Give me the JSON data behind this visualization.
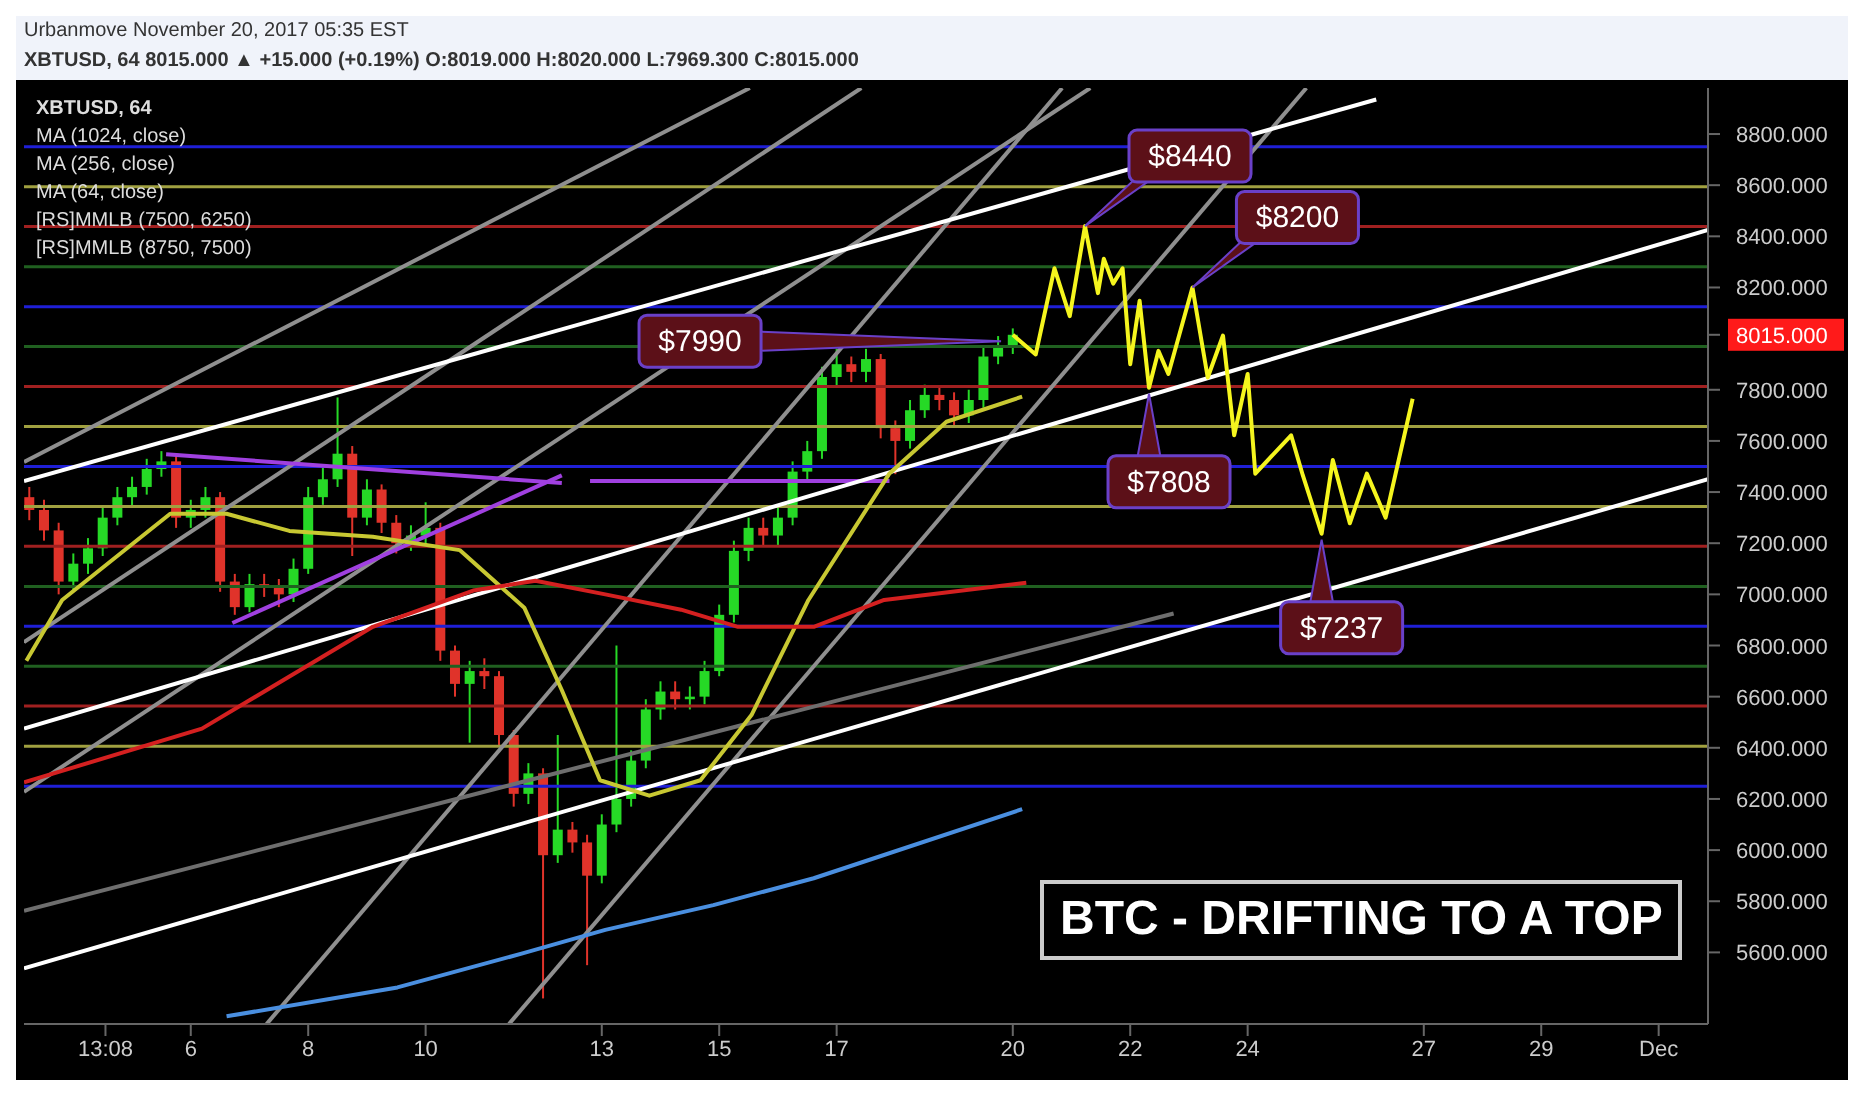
{
  "chart_data": {
    "type": "candlestick",
    "title": "BTC - DRIFTING TO A TOP",
    "annotations": [
      "Urbanmove November 20, 2017 05:35 EST",
      "XBTUSD, 64 8015.000 ▲ +15.000 (+0.19%) O:8019.000 H:8020.000 L:7969.300 C:8015.000",
      "XBTUSD, 64",
      "MA (1024, close)",
      "MA (256, close)",
      "MA (64, close)",
      "[RS]MMLB (7500, 6250)",
      "[RS]MMLB (8750, 7500)",
      {
        "text": "$8440",
        "x": "2017-11-21T05:31",
        "y": 8440
      },
      {
        "text": "$8200",
        "x": "2017-11-23T01:26",
        "y": 8200
      },
      {
        "text": "$7990",
        "x": "2017-11-19T19:12",
        "y": 7990
      },
      {
        "text": "$7808",
        "x": "2017-11-22T07:41",
        "y": 7808
      },
      {
        "text": "$7237",
        "x": "2017-11-25T06:14",
        "y": 7237
      }
    ],
    "x": [
      "2017-11-03T06:00",
      "2017-11-03T12:00",
      "2017-11-03T18:00",
      "2017-11-04",
      "2017-11-04T06:00",
      "2017-11-04T12:00",
      "2017-11-04T18:00",
      "2017-11-05",
      "2017-11-05T06:00",
      "2017-11-05T12:00",
      "2017-11-05T18:00",
      "2017-11-06",
      "2017-11-06T06:00",
      "2017-11-06T12:00",
      "2017-11-06T18:00",
      "2017-11-07",
      "2017-11-07T06:00",
      "2017-11-07T12:00",
      "2017-11-07T18:00",
      "2017-11-08",
      "2017-11-08T06:00",
      "2017-11-08T12:00",
      "2017-11-08T18:00",
      "2017-11-09",
      "2017-11-09T06:00",
      "2017-11-09T12:00",
      "2017-11-09T18:00",
      "2017-11-10",
      "2017-11-10T06:00",
      "2017-11-10T12:00",
      "2017-11-10T18:00",
      "2017-11-11",
      "2017-11-11T06:00",
      "2017-11-11T12:00",
      "2017-11-11T18:00",
      "2017-11-12",
      "2017-11-12T06:00",
      "2017-11-12T12:00",
      "2017-11-12T18:00",
      "2017-11-13",
      "2017-11-13T06:00",
      "2017-11-13T12:00",
      "2017-11-13T18:00",
      "2017-11-14",
      "2017-11-14T06:00",
      "2017-11-14T12:00",
      "2017-11-14T18:00",
      "2017-11-15",
      "2017-11-15T06:00",
      "2017-11-15T12:00",
      "2017-11-15T18:00",
      "2017-11-16",
      "2017-11-16T06:00",
      "2017-11-16T12:00",
      "2017-11-16T18:00",
      "2017-11-17",
      "2017-11-17T06:00",
      "2017-11-17T12:00",
      "2017-11-17T18:00",
      "2017-11-18",
      "2017-11-18T06:00",
      "2017-11-18T12:00",
      "2017-11-18T18:00",
      "2017-11-19",
      "2017-11-19T06:00",
      "2017-11-19T12:00",
      "2017-11-19T18:00",
      "2017-11-20"
    ],
    "ohlc": [
      [
        7380,
        7420,
        7290,
        7330
      ],
      [
        7330,
        7370,
        7210,
        7250
      ],
      [
        7250,
        7280,
        7000,
        7050
      ],
      [
        7050,
        7160,
        7010,
        7120
      ],
      [
        7120,
        7220,
        7080,
        7180
      ],
      [
        7180,
        7340,
        7150,
        7300
      ],
      [
        7300,
        7420,
        7270,
        7380
      ],
      [
        7380,
        7460,
        7340,
        7420
      ],
      [
        7420,
        7530,
        7390,
        7490
      ],
      [
        7490,
        7560,
        7460,
        7520
      ],
      [
        7520,
        7540,
        7260,
        7300
      ],
      [
        7300,
        7370,
        7260,
        7330
      ],
      [
        7330,
        7420,
        7300,
        7380
      ],
      [
        7380,
        7400,
        7010,
        7050
      ],
      [
        7050,
        7080,
        6920,
        6950
      ],
      [
        6950,
        7080,
        6930,
        7040
      ],
      [
        7040,
        7080,
        6990,
        7030
      ],
      [
        7030,
        7060,
        6950,
        7000
      ],
      [
        7000,
        7140,
        6970,
        7100
      ],
      [
        7100,
        7420,
        7080,
        7380
      ],
      [
        7380,
        7500,
        7350,
        7450
      ],
      [
        7450,
        7770,
        7420,
        7550
      ],
      [
        7550,
        7580,
        7150,
        7300
      ],
      [
        7300,
        7450,
        7270,
        7410
      ],
      [
        7410,
        7430,
        7240,
        7280
      ],
      [
        7280,
        7310,
        7160,
        7200
      ],
      [
        7200,
        7270,
        7170,
        7230
      ],
      [
        7230,
        7360,
        7190,
        7260
      ],
      [
        7260,
        7280,
        6740,
        6780
      ],
      [
        6780,
        6800,
        6600,
        6650
      ],
      [
        6650,
        6740,
        6420,
        6700
      ],
      [
        6700,
        6750,
        6630,
        6680
      ],
      [
        6680,
        6700,
        6410,
        6450
      ],
      [
        6450,
        6470,
        6170,
        6220
      ],
      [
        6220,
        6340,
        6180,
        6300
      ],
      [
        6300,
        6320,
        5420,
        5980
      ],
      [
        5980,
        6450,
        5950,
        6080
      ],
      [
        6080,
        6110,
        5990,
        6030
      ],
      [
        6030,
        6060,
        5550,
        5900
      ],
      [
        5900,
        6140,
        5870,
        6100
      ],
      [
        6100,
        6800,
        6070,
        6200
      ],
      [
        6200,
        6390,
        6170,
        6350
      ],
      [
        6350,
        6590,
        6320,
        6550
      ],
      [
        6550,
        6660,
        6510,
        6620
      ],
      [
        6620,
        6660,
        6550,
        6590
      ],
      [
        6590,
        6640,
        6550,
        6600
      ],
      [
        6600,
        6740,
        6570,
        6700
      ],
      [
        6700,
        6960,
        6680,
        6920
      ],
      [
        6920,
        7210,
        6890,
        7170
      ],
      [
        7170,
        7300,
        7130,
        7260
      ],
      [
        7260,
        7300,
        7190,
        7230
      ],
      [
        7230,
        7340,
        7190,
        7300
      ],
      [
        7300,
        7520,
        7270,
        7480
      ],
      [
        7480,
        7600,
        7440,
        7560
      ],
      [
        7560,
        7890,
        7530,
        7850
      ],
      [
        7850,
        7960,
        7810,
        7900
      ],
      [
        7900,
        7930,
        7830,
        7870
      ],
      [
        7870,
        7960,
        7830,
        7920
      ],
      [
        7920,
        7940,
        7610,
        7650
      ],
      [
        7650,
        7680,
        7470,
        7600
      ],
      [
        7600,
        7760,
        7570,
        7720
      ],
      [
        7720,
        7820,
        7690,
        7780
      ],
      [
        7780,
        7810,
        7720,
        7760
      ],
      [
        7760,
        7790,
        7660,
        7700
      ],
      [
        7700,
        7800,
        7670,
        7760
      ],
      [
        7760,
        7970,
        7730,
        7930
      ],
      [
        7930,
        8010,
        7900,
        7970
      ],
      [
        7970,
        8040,
        7940,
        8015
      ]
    ],
    "colors": [
      "#e0332a",
      "#e0332a",
      "#e0332a",
      "#26d926",
      "#26d926",
      "#26d926",
      "#26d926",
      "#26d926",
      "#26d926",
      "#26d926",
      "#e0332a",
      "#26d926",
      "#26d926",
      "#e0332a",
      "#e0332a",
      "#26d926",
      "#e0332a",
      "#e0332a",
      "#26d926",
      "#26d926",
      "#26d926",
      "#26d926",
      "#e0332a",
      "#26d926",
      "#e0332a",
      "#e0332a",
      "#26d926",
      "#26d926",
      "#e0332a",
      "#e0332a",
      "#26d926",
      "#e0332a",
      "#e0332a",
      "#e0332a",
      "#26d926",
      "#e0332a",
      "#26d926",
      "#e0332a",
      "#e0332a",
      "#26d926",
      "#26d926",
      "#26d926",
      "#26d926",
      "#26d926",
      "#e0332a",
      "#26d926",
      "#26d926",
      "#26d926",
      "#26d926",
      "#26d926",
      "#e0332a",
      "#26d926",
      "#26d926",
      "#26d926",
      "#26d926",
      "#26d926",
      "#e0332a",
      "#26d926",
      "#e0332a",
      "#e0332a",
      "#26d926",
      "#26d926",
      "#e0332a",
      "#e0332a",
      "#26d926",
      "#26d926",
      "#26d926",
      "#26d926"
    ],
    "series": [
      {
        "type": "line",
        "color": "#8f8f8f",
        "x": [
          "2017-11-07T07:00",
          "2017-11-20T20:10"
        ],
        "values": [
          5320,
          8980
        ]
      },
      {
        "type": "line",
        "color": "#8f8f8f",
        "x": [
          "2017-11-11T10:05",
          "2017-11-25"
        ],
        "values": [
          5320,
          8980
        ]
      },
      {
        "type": "line",
        "color": "#8f8f8f",
        "x": [
          "2017-11-03T03:50",
          "2017-11-15T12:30"
        ],
        "values": [
          7518,
          8980
        ]
      },
      {
        "type": "line",
        "color": "#8f8f8f",
        "x": [
          "2017-11-03T03:50",
          "2017-11-17T10:05"
        ],
        "values": [
          6813,
          8980
        ]
      },
      {
        "type": "line",
        "color": "#8f8f8f",
        "x": [
          "2017-11-03T03:50",
          "2017-11-21T07:40"
        ],
        "values": [
          6228,
          8980
        ]
      },
      {
        "type": "line",
        "color": "#6e6e6e",
        "x": [
          "2017-11-03T03:50",
          "2017-11-22T17:45"
        ],
        "values": [
          5763,
          6925
        ]
      },
      {
        "type": "line",
        "color": "#a040e0",
        "x": [
          "2017-11-05T13:55",
          "2017-11-12T07:40"
        ],
        "values": [
          7548,
          7435
        ]
      },
      {
        "type": "line",
        "color": "#a040e0",
        "x": [
          "2017-11-06T17:00",
          "2017-11-12T07:40"
        ],
        "values": [
          6888,
          7465
        ]
      },
      {
        "type": "line",
        "color": "#a040e0",
        "x": [
          "2017-11-12T19:12",
          "2017-11-17T21:36"
        ],
        "values": [
          7443,
          7443
        ]
      },
      {
        "type": "line",
        "color": "#ffffff",
        "x": [
          "2017-11-03T03:50",
          "2017-11-26T04:34"
        ],
        "values": [
          7443,
          8935
        ]
      },
      {
        "type": "line",
        "color": "#ffffff",
        "x": [
          "2017-11-03T03:50",
          "2017-12-01T20:10"
        ],
        "values": [
          6475,
          8425
        ]
      },
      {
        "type": "line",
        "color": "#ffffff",
        "x": [
          "2017-11-03T03:50",
          "2017-12-01T20:10"
        ],
        "values": [
          5538,
          7450
        ]
      },
      {
        "type": "line",
        "color": "#c8c832",
        "x": [
          "2017-11-03T04:48",
          "2017-11-03T19:26",
          "2017-11-05T15:36",
          "2017-11-06T14:38",
          "2017-11-07T16:19",
          "2017-11-09T02:24",
          "2017-11-10T13:55",
          "2017-11-11T16:19",
          "2017-11-12T07:41",
          "2017-11-12T23:17",
          "2017-11-13T19:26",
          "2017-11-14T16:19",
          "2017-11-15T13:12",
          "2017-11-16T12:29",
          "2017-11-17T21:36",
          "2017-11-18T20:53",
          "2017-11-20T03:50"
        ],
        "values": [
          6740,
          6978,
          7315,
          7315,
          7248,
          7225,
          7173,
          6948,
          6625,
          6273,
          6213,
          6273,
          6528,
          6978,
          7473,
          7675,
          7773
        ]
      },
      {
        "type": "line",
        "color": "#d42020",
        "x": [
          "2017-11-03T03:50",
          "2017-11-06T04:34",
          "2017-11-09T02:24",
          "2017-11-10T19:26",
          "2017-11-11T20:53",
          "2017-11-13T01:26",
          "2017-11-14T08:24",
          "2017-11-15T07:41",
          "2017-11-16T14:38",
          "2017-11-17T19:26",
          "2017-11-20T05:31"
        ],
        "values": [
          6265,
          6475,
          6873,
          7015,
          7053,
          7000,
          6940,
          6873,
          6873,
          6978,
          7045
        ]
      },
      {
        "type": "line",
        "color": "#4a8fe0",
        "x": [
          "2017-11-06T14:38",
          "2017-11-09T12:29",
          "2017-11-11T16:19",
          "2017-11-13T01:26",
          "2017-11-14T21:36",
          "2017-11-16T14:38",
          "2017-11-20T03:50"
        ],
        "values": [
          5350,
          5463,
          5598,
          5688,
          5785,
          5890,
          6160
        ]
      },
      {
        "type": "line",
        "color": "#f5f51e",
        "x": [
          "2017-11-20",
          "2017-11-20T09:22",
          "2017-11-20T17:02",
          "2017-11-20T23:17",
          "2017-11-21T05:31",
          "2017-11-21T10:48",
          "2017-11-21T13:12",
          "2017-11-21T17:02",
          "2017-11-21T20:53",
          "2017-11-22",
          "2017-11-22T03:50",
          "2017-11-22T07:41",
          "2017-11-22T11:31",
          "2017-11-22T15:36",
          "2017-11-23T01:26",
          "2017-11-23T07:41",
          "2017-11-23T13:55",
          "2017-11-23T18:29",
          "2017-11-24",
          "2017-11-24T03:07",
          "2017-11-24T17:46",
          "2017-11-24T22:34",
          "2017-11-25T06:14",
          "2017-11-25T10:48",
          "2017-11-25T17:46",
          "2017-11-26T00:43",
          "2017-11-26T08:24",
          "2017-11-26T19:26"
        ],
        "values": [
          8015,
          7938,
          8275,
          8088,
          8440,
          8178,
          8312,
          8215,
          8275,
          7900,
          8148,
          7808,
          7952,
          7862,
          8200,
          7848,
          8012,
          7622,
          7862,
          7472,
          7622,
          7465,
          7237,
          7525,
          7278,
          7472,
          7300,
          7765
        ]
      }
    ],
    "ref_lines": [
      {
        "axis": "y",
        "value": 8750,
        "color": "#1f1fd6"
      },
      {
        "axis": "y",
        "value": 8594,
        "color": "#a0a040"
      },
      {
        "axis": "y",
        "value": 8438,
        "color": "#a02020"
      },
      {
        "axis": "y",
        "value": 8281,
        "color": "#206020"
      },
      {
        "axis": "y",
        "value": 8125,
        "color": "#1f1fd6"
      },
      {
        "axis": "y",
        "value": 7969,
        "color": "#206020"
      },
      {
        "axis": "y",
        "value": 7813,
        "color": "#a02020"
      },
      {
        "axis": "y",
        "value": 7656,
        "color": "#a0a040"
      },
      {
        "axis": "y",
        "value": 7500,
        "color": "#1f1fd6"
      },
      {
        "axis": "y",
        "value": 7344,
        "color": "#a0a040"
      },
      {
        "axis": "y",
        "value": 7188,
        "color": "#a02020"
      },
      {
        "axis": "y",
        "value": 7031,
        "color": "#206020"
      },
      {
        "axis": "y",
        "value": 6875,
        "color": "#1f1fd6"
      },
      {
        "axis": "y",
        "value": 6719,
        "color": "#206020"
      },
      {
        "axis": "y",
        "value": 6563,
        "color": "#a02020"
      },
      {
        "axis": "y",
        "value": 6406,
        "color": "#a0a040"
      },
      {
        "axis": "y",
        "value": 6250,
        "color": "#1f1fd6"
      }
    ],
    "xlim": [
      "2017-11-03T03:50",
      "2017-12-01T20:10"
    ],
    "xticks": [
      {
        "value": "2017-11-04T13:08",
        "label": "13:08"
      },
      {
        "value": "2017-11-06",
        "label": "6"
      },
      {
        "value": "2017-11-08",
        "label": "8"
      },
      {
        "value": "2017-11-10",
        "label": "10"
      },
      {
        "value": "2017-11-13",
        "label": "13"
      },
      {
        "value": "2017-11-15",
        "label": "15"
      },
      {
        "value": "2017-11-17",
        "label": "17"
      },
      {
        "value": "2017-11-20",
        "label": "20"
      },
      {
        "value": "2017-11-22",
        "label": "22"
      },
      {
        "value": "2017-11-24",
        "label": "24"
      },
      {
        "value": "2017-11-27",
        "label": "27"
      },
      {
        "value": "2017-11-29",
        "label": "29"
      },
      {
        "value": "2017-12-01",
        "label": "Dec"
      }
    ],
    "ylim": [
      5320,
      8980
    ],
    "yticks": [
      {
        "value": 5600,
        "label": "5600.000"
      },
      {
        "value": 5800,
        "label": "5800.000"
      },
      {
        "value": 6000,
        "label": "6000.000"
      },
      {
        "value": 6200,
        "label": "6200.000"
      },
      {
        "value": 6400,
        "label": "6400.000"
      },
      {
        "value": 6600,
        "label": "6600.000"
      },
      {
        "value": 6800,
        "label": "6800.000"
      },
      {
        "value": 7000,
        "label": "7000.000"
      },
      {
        "value": 7200,
        "label": "7200.000"
      },
      {
        "value": 7400,
        "label": "7400.000"
      },
      {
        "value": 7600,
        "label": "7600.000"
      },
      {
        "value": 7800,
        "label": "7800.000"
      },
      {
        "value": 8015,
        "label": "8015.000"
      },
      {
        "value": 8200,
        "label": "8200.000"
      },
      {
        "value": 8400,
        "label": "8400.000"
      },
      {
        "value": 8600,
        "label": "8600.000"
      },
      {
        "value": 8800,
        "label": "8800.000"
      }
    ]
  }
}
